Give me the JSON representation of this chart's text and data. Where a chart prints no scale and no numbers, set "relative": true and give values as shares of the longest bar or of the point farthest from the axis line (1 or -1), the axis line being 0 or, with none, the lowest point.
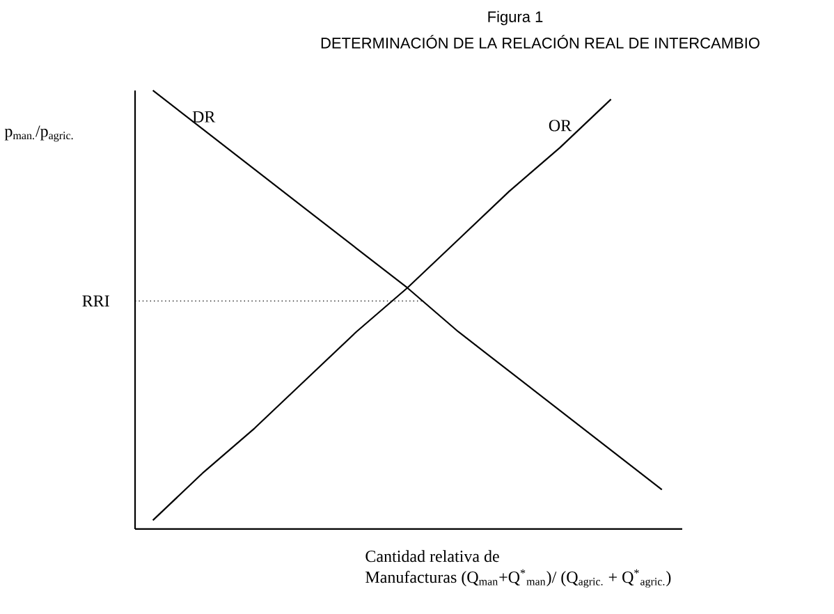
{
  "chart_data": {
    "type": "line",
    "title": "Figura 1",
    "subtitle": "DETERMINACIÓN DE LA RELACIÓN REAL DE INTERCAMBIO",
    "xlabel": "Cantidad relativa de Manufacturas (Q$_{man}$+Q$^{*}$$_{man}$)/ (Q$_{agric.}$ + Q$^{*}$$_{agric.}$)",
    "ylabel": "p$_{man.}$/p$_{agric.}$",
    "relative": true,
    "categories": [
      null,
      null,
      null,
      null,
      null,
      null,
      null,
      null,
      null,
      null,
      null
    ],
    "series": [
      {
        "name": "DR",
        "color": "#000000",
        "values": [
          1,
          0.91,
          0.82,
          0.73,
          0.64,
          0.55,
          0.45,
          0.36,
          0.27,
          0.18,
          0.09
        ]
      },
      {
        "name": "OR",
        "color": "#000000",
        "values": [
          0.02,
          0.13,
          0.23,
          0.34,
          0.45,
          0.55,
          0.66,
          0.77,
          0.87,
          0.98,
          null
        ]
      }
    ],
    "ref_lines": [
      {
        "axis": "y",
        "value": 0.52,
        "label": "RRI",
        "line_style": "dotted"
      }
    ],
    "marker": "none",
    "line_style": "solid"
  }
}
